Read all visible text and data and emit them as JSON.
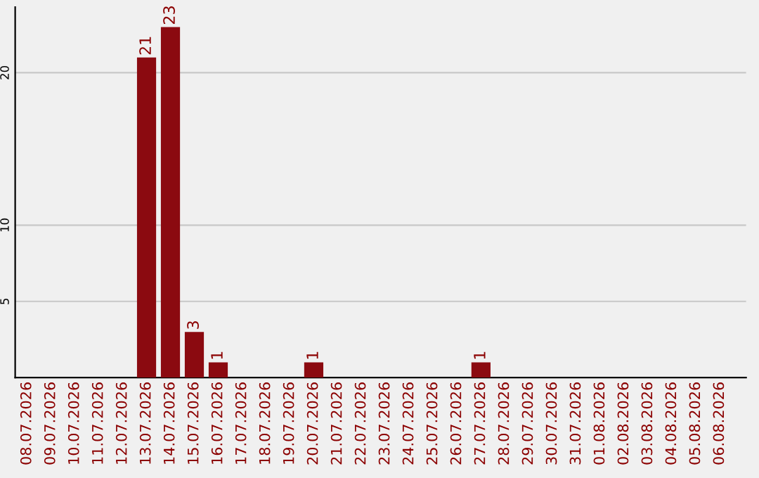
{
  "chart_data": {
    "type": "bar",
    "categories": [
      "08.07.2026",
      "09.07.2026",
      "10.07.2026",
      "11.07.2026",
      "12.07.2026",
      "13.07.2026",
      "14.07.2026",
      "15.07.2026",
      "16.07.2026",
      "17.07.2026",
      "18.07.2026",
      "19.07.2026",
      "20.07.2026",
      "21.07.2026",
      "22.07.2026",
      "23.07.2026",
      "24.07.2026",
      "25.07.2026",
      "26.07.2026",
      "27.07.2026",
      "28.07.2026",
      "29.07.2026",
      "30.07.2026",
      "31.07.2026",
      "01.08.2026",
      "02.08.2026",
      "03.08.2026",
      "04.08.2026",
      "05.08.2026",
      "06.08.2026"
    ],
    "values": [
      0,
      0,
      0,
      0,
      0,
      21,
      23,
      3,
      1,
      0,
      0,
      0,
      1,
      0,
      0,
      0,
      0,
      0,
      0,
      1,
      0,
      0,
      0,
      0,
      0,
      0,
      0,
      0,
      0,
      0
    ],
    "value_labels": [
      null,
      null,
      null,
      null,
      null,
      "21",
      "23",
      "3",
      "1",
      null,
      null,
      null,
      "1",
      null,
      null,
      null,
      null,
      null,
      null,
      "1",
      null,
      null,
      null,
      null,
      null,
      null,
      null,
      null,
      null,
      null
    ],
    "color": "#8b0a10",
    "ylim": [
      0,
      24.3
    ],
    "yticks": [
      5,
      10,
      20
    ],
    "grid": "y"
  }
}
